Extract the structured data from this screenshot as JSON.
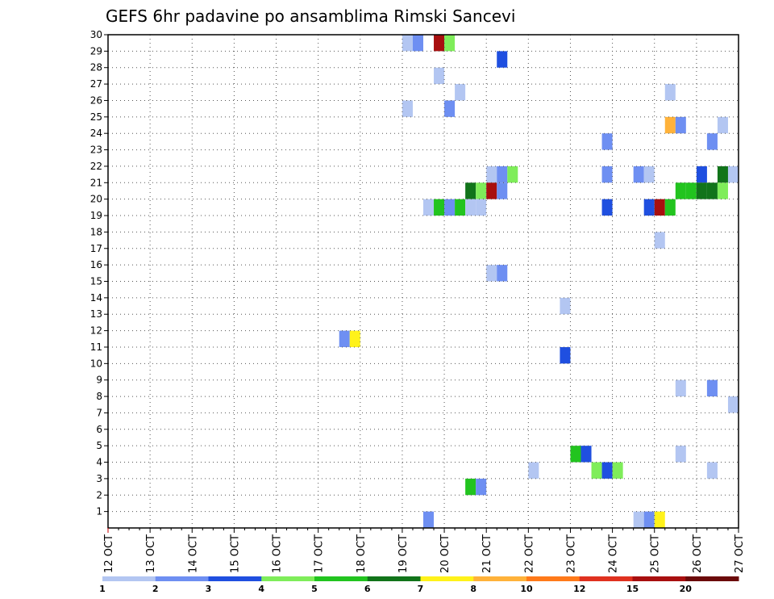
{
  "chart_data": {
    "type": "heatmap",
    "title": "GEFS 6hr padavine po ansamblima Rimski Sancevi",
    "x_ticks": [
      "12 OCT",
      "13 OCT",
      "14 OCT",
      "15 OCT",
      "16 OCT",
      "17 OCT",
      "18 OCT",
      "19 OCT",
      "20 OCT",
      "21 OCT",
      "22 OCT",
      "23 OCT",
      "24 OCT",
      "25 OCT",
      "26 OCT",
      "27 OCT"
    ],
    "xlim": [
      "12 OCT",
      "27 OCT"
    ],
    "time_step_hours": 6,
    "y_ticks": [
      1,
      2,
      3,
      4,
      5,
      6,
      7,
      8,
      9,
      10,
      11,
      12,
      13,
      14,
      15,
      16,
      17,
      18,
      19,
      20,
      21,
      22,
      23,
      24,
      25,
      26,
      27,
      28,
      29,
      30
    ],
    "ylim": [
      0,
      30
    ],
    "grid": true,
    "colorbar": {
      "labels": [
        "1",
        "2",
        "3",
        "4",
        "5",
        "6",
        "7",
        "8",
        "10",
        "12",
        "15",
        "20"
      ],
      "colors": [
        "#b3c6f2",
        "#6e8ff2",
        "#1f4fe0",
        "#7fed5a",
        "#22c41f",
        "#11741a",
        "#fff21a",
        "#ffb23a",
        "#ff7a1a",
        "#e0311f",
        "#a80f0f",
        "#6b0a0a"
      ]
    },
    "cells": [
      {
        "time": "19 OCT 00Z",
        "member": 30,
        "color": "#b3c6f2"
      },
      {
        "time": "19 OCT 06Z",
        "member": 30,
        "color": "#6e8ff2"
      },
      {
        "time": "19 OCT 18Z",
        "member": 30,
        "color": "#a80f0f"
      },
      {
        "time": "20 OCT 00Z",
        "member": 30,
        "color": "#7fed5a"
      },
      {
        "time": "21 OCT 06Z",
        "member": 29,
        "color": "#1f4fe0"
      },
      {
        "time": "19 OCT 18Z",
        "member": 28,
        "color": "#b3c6f2"
      },
      {
        "time": "20 OCT 06Z",
        "member": 27,
        "color": "#b3c6f2"
      },
      {
        "time": "25 OCT 06Z",
        "member": 27,
        "color": "#b3c6f2"
      },
      {
        "time": "19 OCT 00Z",
        "member": 26,
        "color": "#b3c6f2"
      },
      {
        "time": "20 OCT 00Z",
        "member": 26,
        "color": "#6e8ff2"
      },
      {
        "time": "25 OCT 06Z",
        "member": 25,
        "color": "#ffb23a"
      },
      {
        "time": "25 OCT 12Z",
        "member": 25,
        "color": "#6e8ff2"
      },
      {
        "time": "26 OCT 12Z",
        "member": 25,
        "color": "#b3c6f2"
      },
      {
        "time": "23 OCT 18Z",
        "member": 24,
        "color": "#6e8ff2"
      },
      {
        "time": "26 OCT 06Z",
        "member": 24,
        "color": "#6e8ff2"
      },
      {
        "time": "21 OCT 00Z",
        "member": 22,
        "color": "#b3c6f2"
      },
      {
        "time": "21 OCT 06Z",
        "member": 22,
        "color": "#6e8ff2"
      },
      {
        "time": "21 OCT 12Z",
        "member": 22,
        "color": "#7fed5a"
      },
      {
        "time": "23 OCT 18Z",
        "member": 22,
        "color": "#6e8ff2"
      },
      {
        "time": "24 OCT 12Z",
        "member": 22,
        "color": "#6e8ff2"
      },
      {
        "time": "24 OCT 18Z",
        "member": 22,
        "color": "#b3c6f2"
      },
      {
        "time": "26 OCT 00Z",
        "member": 22,
        "color": "#1f4fe0"
      },
      {
        "time": "26 OCT 12Z",
        "member": 22,
        "color": "#11741a"
      },
      {
        "time": "26 OCT 18Z",
        "member": 22,
        "color": "#b3c6f2"
      },
      {
        "time": "20 OCT 12Z",
        "member": 21,
        "color": "#11741a"
      },
      {
        "time": "20 OCT 18Z",
        "member": 21,
        "color": "#7fed5a"
      },
      {
        "time": "21 OCT 00Z",
        "member": 21,
        "color": "#a80f0f"
      },
      {
        "time": "21 OCT 06Z",
        "member": 21,
        "color": "#6e8ff2"
      },
      {
        "time": "25 OCT 12Z",
        "member": 21,
        "color": "#22c41f"
      },
      {
        "time": "25 OCT 18Z",
        "member": 21,
        "color": "#22c41f"
      },
      {
        "time": "26 OCT 00Z",
        "member": 21,
        "color": "#11741a"
      },
      {
        "time": "26 OCT 06Z",
        "member": 21,
        "color": "#11741a"
      },
      {
        "time": "26 OCT 12Z",
        "member": 21,
        "color": "#7fed5a"
      },
      {
        "time": "19 OCT 12Z",
        "member": 20,
        "color": "#b3c6f2"
      },
      {
        "time": "19 OCT 18Z",
        "member": 20,
        "color": "#22c41f"
      },
      {
        "time": "20 OCT 00Z",
        "member": 20,
        "color": "#6e8ff2"
      },
      {
        "time": "20 OCT 06Z",
        "member": 20,
        "color": "#22c41f"
      },
      {
        "time": "20 OCT 12Z",
        "member": 20,
        "color": "#b3c6f2"
      },
      {
        "time": "20 OCT 18Z",
        "member": 20,
        "color": "#b3c6f2"
      },
      {
        "time": "23 OCT 18Z",
        "member": 20,
        "color": "#1f4fe0"
      },
      {
        "time": "24 OCT 18Z",
        "member": 20,
        "color": "#1f4fe0"
      },
      {
        "time": "25 OCT 00Z",
        "member": 20,
        "color": "#a80f0f"
      },
      {
        "time": "25 OCT 06Z",
        "member": 20,
        "color": "#22c41f"
      },
      {
        "time": "25 OCT 00Z",
        "member": 18,
        "color": "#b3c6f2"
      },
      {
        "time": "21 OCT 00Z",
        "member": 16,
        "color": "#b3c6f2"
      },
      {
        "time": "21 OCT 06Z",
        "member": 16,
        "color": "#6e8ff2"
      },
      {
        "time": "22 OCT 18Z",
        "member": 14,
        "color": "#b3c6f2"
      },
      {
        "time": "17 OCT 12Z",
        "member": 12,
        "color": "#6e8ff2"
      },
      {
        "time": "17 OCT 18Z",
        "member": 12,
        "color": "#fff21a"
      },
      {
        "time": "22 OCT 18Z",
        "member": 11,
        "color": "#1f4fe0"
      },
      {
        "time": "25 OCT 12Z",
        "member": 9,
        "color": "#b3c6f2"
      },
      {
        "time": "26 OCT 06Z",
        "member": 9,
        "color": "#6e8ff2"
      },
      {
        "time": "26 OCT 18Z",
        "member": 8,
        "color": "#b3c6f2"
      },
      {
        "time": "23 OCT 00Z",
        "member": 5,
        "color": "#22c41f"
      },
      {
        "time": "23 OCT 06Z",
        "member": 5,
        "color": "#1f4fe0"
      },
      {
        "time": "25 OCT 12Z",
        "member": 5,
        "color": "#b3c6f2"
      },
      {
        "time": "22 OCT 00Z",
        "member": 4,
        "color": "#b3c6f2"
      },
      {
        "time": "23 OCT 12Z",
        "member": 4,
        "color": "#7fed5a"
      },
      {
        "time": "23 OCT 18Z",
        "member": 4,
        "color": "#1f4fe0"
      },
      {
        "time": "24 OCT 00Z",
        "member": 4,
        "color": "#7fed5a"
      },
      {
        "time": "26 OCT 06Z",
        "member": 4,
        "color": "#b3c6f2"
      },
      {
        "time": "20 OCT 12Z",
        "member": 3,
        "color": "#22c41f"
      },
      {
        "time": "20 OCT 18Z",
        "member": 3,
        "color": "#6e8ff2"
      },
      {
        "time": "19 OCT 12Z",
        "member": 1,
        "color": "#6e8ff2"
      },
      {
        "time": "24 OCT 12Z",
        "member": 1,
        "color": "#b3c6f2"
      },
      {
        "time": "24 OCT 18Z",
        "member": 1,
        "color": "#6e8ff2"
      },
      {
        "time": "25 OCT 00Z",
        "member": 1,
        "color": "#fff21a"
      }
    ]
  }
}
